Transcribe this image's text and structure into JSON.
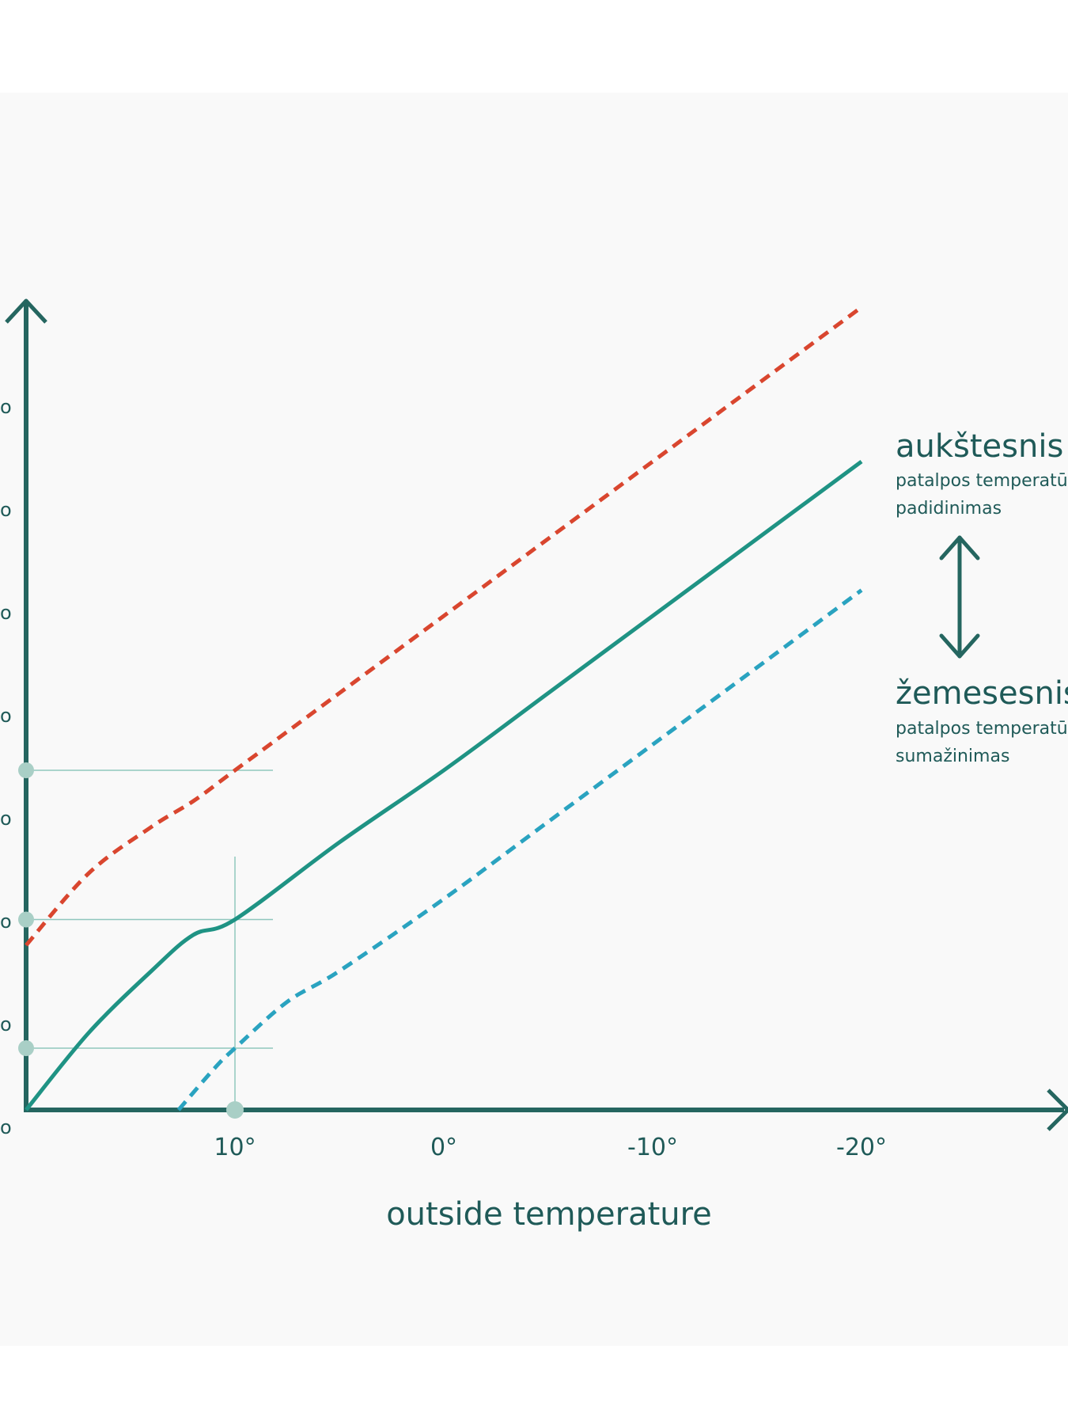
{
  "colors": {
    "axis": "#256660",
    "main_curve": "#1f9384",
    "upper_curve": "#d9462f",
    "lower_curve": "#2aa3c0",
    "guide": "#8fc7bd",
    "marker": "#a9cfc6",
    "text": "#1f5a58",
    "panel_bg": "#f9f9f9"
  },
  "chart_data": {
    "type": "line",
    "xlabel": "outside temperature",
    "ylabel": "",
    "x_tick_labels": [
      "10°",
      "0°",
      "-10°",
      "-20°"
    ],
    "x_ticks": [
      10,
      0,
      -10,
      -20
    ],
    "xlim": [
      20,
      -26
    ],
    "ylim": [
      0,
      8
    ],
    "y_tick_labels": [
      "o",
      "o",
      "o",
      "o",
      "o",
      "o",
      "o",
      "o"
    ],
    "y_ticks": [
      0,
      1,
      2,
      3,
      4,
      5,
      6,
      7
    ],
    "grid": false,
    "series": [
      {
        "key": "main",
        "style": "solid",
        "x": [
          20,
          17,
          14,
          12,
          10,
          5,
          0,
          -5,
          -10,
          -15,
          -20
        ],
        "y": [
          0,
          0.75,
          1.35,
          1.7,
          1.85,
          2.6,
          3.3,
          4.05,
          4.8,
          5.55,
          6.3
        ]
      },
      {
        "key": "upper",
        "style": "dashed",
        "x": [
          20,
          17,
          14,
          12,
          10,
          5,
          0,
          -5,
          -10,
          -15,
          -20
        ],
        "y": [
          1.6,
          2.3,
          2.75,
          3.0,
          3.3,
          4.05,
          4.8,
          5.55,
          6.3,
          7.05,
          7.8
        ]
      },
      {
        "key": "lower",
        "style": "dashed",
        "x": [
          12.7,
          11,
          10,
          7.5,
          5,
          0,
          -5,
          -10,
          -15,
          -20
        ],
        "y": [
          0,
          0.4,
          0.6,
          1.05,
          1.35,
          2.05,
          2.8,
          3.55,
          4.3,
          5.05
        ]
      }
    ],
    "reference_x": 10,
    "reference_y": [
      3.3,
      1.85,
      0.6
    ]
  },
  "annotations": {
    "upper_title": "aukštesnis l",
    "upper_sub1": "patalpos temperatū",
    "upper_sub2": "padidinimas",
    "lower_title": "žemesesnis",
    "lower_sub1": "patalpos temperatū",
    "lower_sub2": "sumažinimas",
    "arrow_icon": "double-arrow-vertical-icon"
  }
}
